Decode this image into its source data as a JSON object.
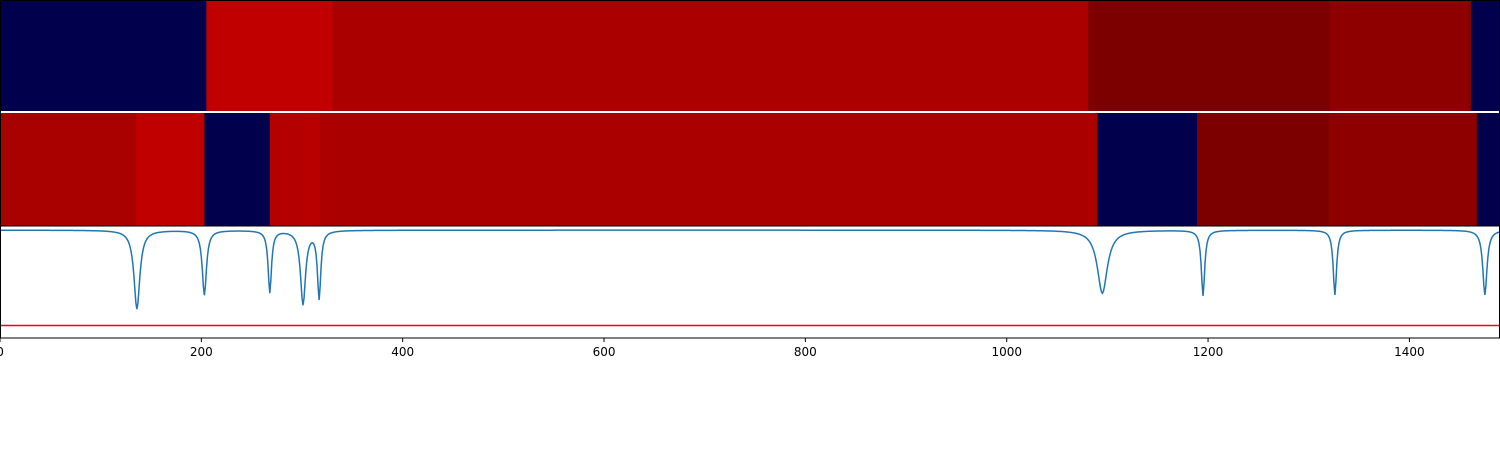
{
  "chart_data": {
    "type": "heatmap",
    "title": "",
    "xlabel": "",
    "ylabel": "",
    "xlim": [
      0,
      1490
    ],
    "x_ticks": [
      {
        "value": 0,
        "label": "0"
      },
      {
        "value": 200,
        "label": "200"
      },
      {
        "value": 400,
        "label": "400"
      },
      {
        "value": 600,
        "label": "600"
      },
      {
        "value": 800,
        "label": "800"
      },
      {
        "value": 1000,
        "label": "1000"
      },
      {
        "value": 1200,
        "label": "1200"
      },
      {
        "value": 1400,
        "label": "1400"
      }
    ],
    "bands": [
      {
        "segments": [
          {
            "start": 0,
            "end": 205,
            "color": "#00004c"
          },
          {
            "start": 205,
            "end": 330,
            "color": "#c00000"
          },
          {
            "start": 330,
            "end": 1081,
            "color": "#ab0000"
          },
          {
            "start": 1081,
            "end": 1321,
            "color": "#7c0000"
          },
          {
            "start": 1321,
            "end": 1461,
            "color": "#8e0000"
          },
          {
            "start": 1461,
            "end": 1490,
            "color": "#00004c"
          }
        ]
      },
      {
        "segments": [
          {
            "start": 0,
            "end": 135,
            "color": "#a90000"
          },
          {
            "start": 135,
            "end": 203,
            "color": "#c00000"
          },
          {
            "start": 203,
            "end": 268,
            "color": "#00004c"
          },
          {
            "start": 268,
            "end": 302,
            "color": "#b50000"
          },
          {
            "start": 302,
            "end": 318,
            "color": "#b80000"
          },
          {
            "start": 318,
            "end": 1090,
            "color": "#ab0000"
          },
          {
            "start": 1090,
            "end": 1189,
            "color": "#00004c"
          },
          {
            "start": 1189,
            "end": 1320,
            "color": "#7c0000"
          },
          {
            "start": 1320,
            "end": 1467,
            "color": "#8e0000"
          },
          {
            "start": 1467,
            "end": 1490,
            "color": "#00004c"
          }
        ]
      }
    ],
    "signal": {
      "color": "#1f77b4",
      "ylim": [
        -1.0,
        0.05
      ],
      "baseline": 0.0,
      "dips": [
        {
          "center": 136,
          "depth": 0.95,
          "width": 3.5
        },
        {
          "center": 203,
          "depth": 0.78,
          "width": 2.5
        },
        {
          "center": 268,
          "depth": 0.75,
          "width": 2.0
        },
        {
          "center": 301,
          "depth": 0.89,
          "width": 3.0
        },
        {
          "center": 317,
          "depth": 0.81,
          "width": 2.0
        },
        {
          "center": 1095,
          "depth": 0.76,
          "width": 6.0
        },
        {
          "center": 1195,
          "depth": 0.79,
          "width": 2.0
        },
        {
          "center": 1326,
          "depth": 0.78,
          "width": 2.0
        },
        {
          "center": 1475,
          "depth": 0.78,
          "width": 2.5
        }
      ]
    },
    "threshold": {
      "value": -1.15,
      "color": "#ff0000"
    }
  }
}
